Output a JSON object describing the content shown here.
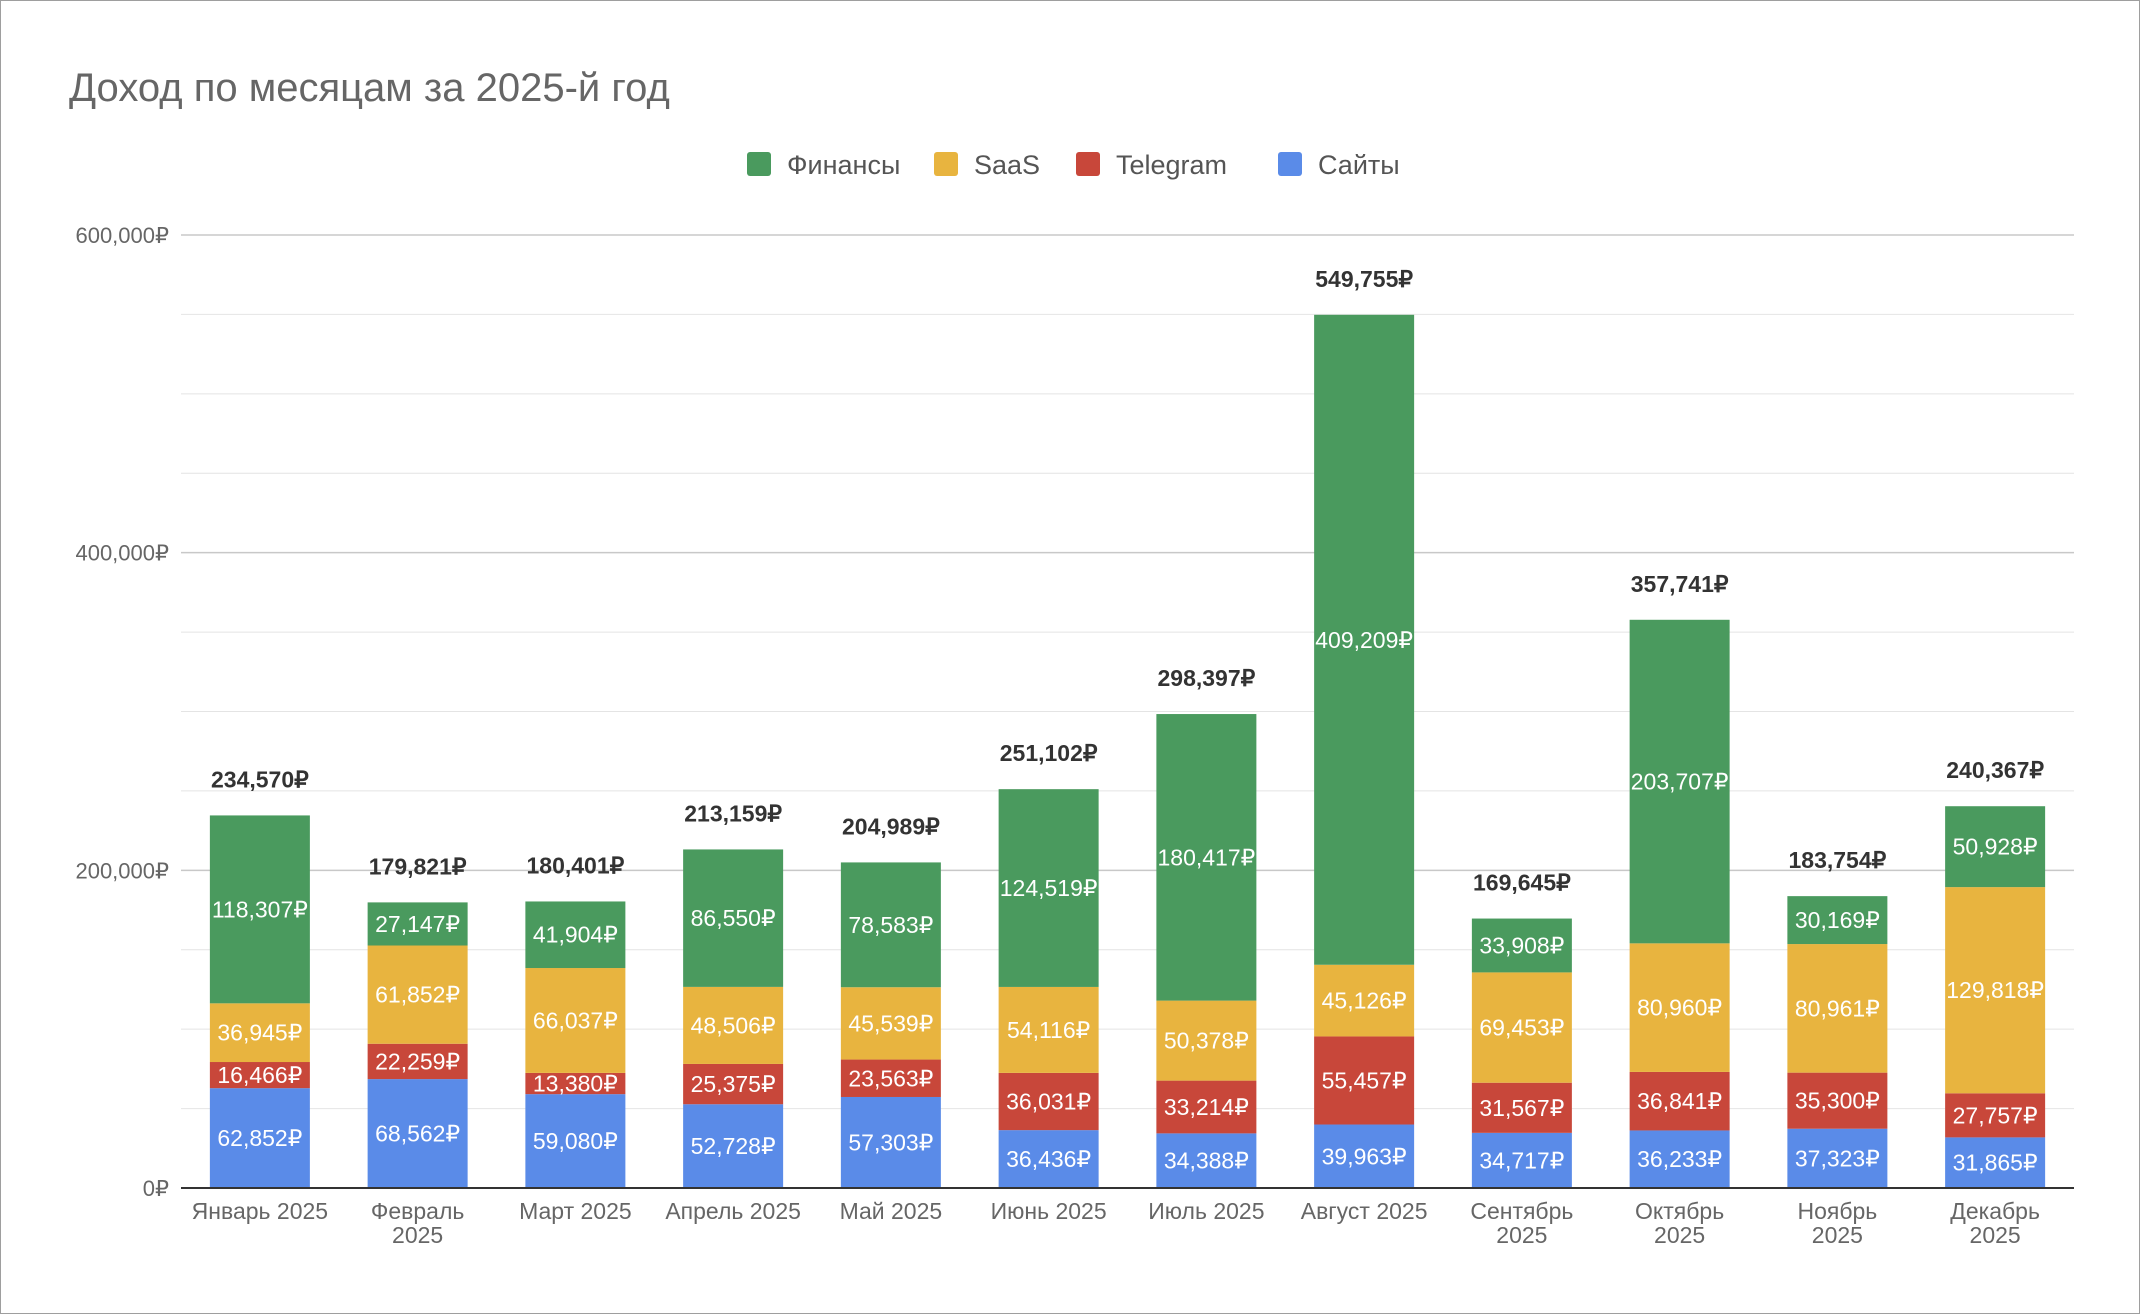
{
  "chart_data": {
    "type": "bar",
    "stacked": true,
    "title": "Доход по месяцам за 2025-й год",
    "xlabel": "",
    "ylabel": "",
    "ylim": [
      0,
      600000
    ],
    "y_ticks": [
      "0₽",
      "200,000₽",
      "400,000₽",
      "600,000₽"
    ],
    "y_tick_values": [
      0,
      200000,
      400000,
      600000
    ],
    "grid": true,
    "legend_position": "top-center",
    "categories": [
      [
        "Январь 2025"
      ],
      [
        "Февраль",
        "2025"
      ],
      [
        "Март 2025"
      ],
      [
        "Апрель 2025"
      ],
      [
        "Май 2025"
      ],
      [
        "Июнь 2025"
      ],
      [
        "Июль 2025"
      ],
      [
        "Август 2025"
      ],
      [
        "Сентябрь",
        "2025"
      ],
      [
        "Октябрь",
        "2025"
      ],
      [
        "Ноябрь",
        "2025"
      ],
      [
        "Декабрь",
        "2025"
      ]
    ],
    "legend_order": [
      "Финансы",
      "SaaS",
      "Telegram",
      "Сайты"
    ],
    "series": [
      {
        "name": "Сайты",
        "color": "#5A8BE8",
        "values": [
          62852,
          68562,
          59080,
          52728,
          57303,
          36436,
          34388,
          39963,
          34717,
          36233,
          37323,
          31865
        ],
        "labels": [
          "62,852₽",
          "68,562₽",
          "59,080₽",
          "52,728₽",
          "57,303₽",
          "36,436₽",
          "34,388₽",
          "39,963₽",
          "34,717₽",
          "36,233₽",
          "37,323₽",
          "31,865₽"
        ]
      },
      {
        "name": "Telegram",
        "color": "#C8473A",
        "values": [
          16466,
          22259,
          13380,
          25375,
          23563,
          36031,
          33214,
          55457,
          31567,
          36841,
          35300,
          27757
        ],
        "labels": [
          "16,466₽",
          "22,259₽",
          "13,380₽",
          "25,375₽",
          "23,563₽",
          "36,031₽",
          "33,214₽",
          "55,457₽",
          "31,567₽",
          "36,841₽",
          "35,300₽",
          "27,757₽"
        ]
      },
      {
        "name": "SaaS",
        "color": "#E8B43F",
        "values": [
          36945,
          61852,
          66037,
          48506,
          45539,
          54116,
          50378,
          45126,
          69453,
          80960,
          80961,
          129818
        ],
        "labels": [
          "36,945₽",
          "61,852₽",
          "66,037₽",
          "48,506₽",
          "45,539₽",
          "54,116₽",
          "50,378₽",
          "45,126₽",
          "69,453₽",
          "80,960₽",
          "80,961₽",
          "129,818₽"
        ]
      },
      {
        "name": "Финансы",
        "color": "#4A9A5E",
        "values": [
          118307,
          27147,
          41904,
          86550,
          78583,
          124519,
          180417,
          409209,
          33908,
          203707,
          30169,
          50928
        ],
        "labels": [
          "118,307₽",
          "27,147₽",
          "41,904₽",
          "86,550₽",
          "78,583₽",
          "124,519₽",
          "180,417₽",
          "409,209₽",
          "33,908₽",
          "203,707₽",
          "30,169₽",
          "50,928₽"
        ]
      }
    ],
    "totals": [
      234570,
      179821,
      180401,
      213159,
      204989,
      251102,
      298397,
      549755,
      169645,
      357741,
      183754,
      240367
    ],
    "total_labels": [
      "234,570₽",
      "179,821₽",
      "180,401₽",
      "213,159₽",
      "204,989₽",
      "251,102₽",
      "298,397₽",
      "549,755₽",
      "169,645₽",
      "357,741₽",
      "183,754₽",
      "240,367₽"
    ]
  }
}
